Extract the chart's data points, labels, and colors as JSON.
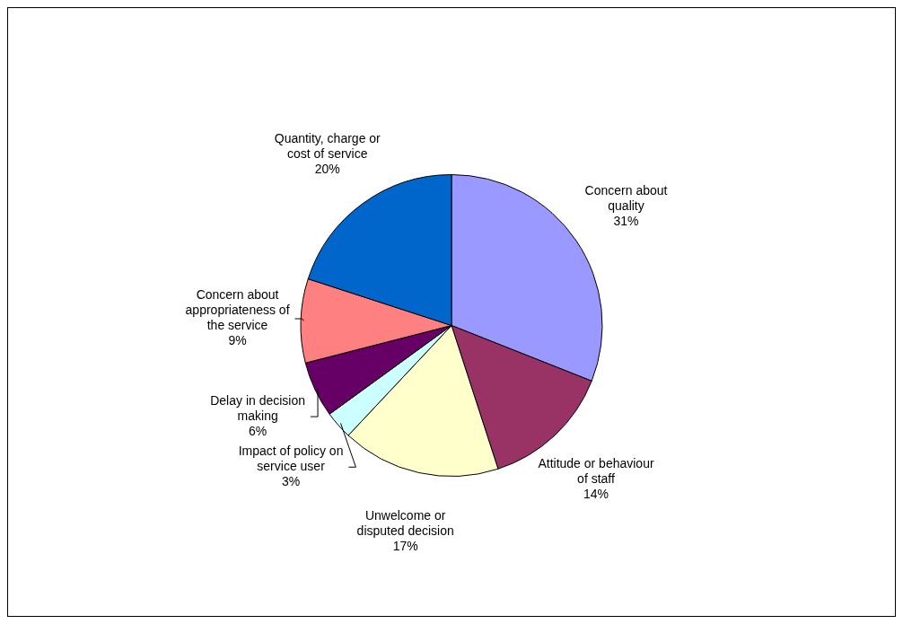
{
  "chart_data": {
    "type": "pie",
    "categories": [
      "Concern about quality",
      "Attitude or behaviour of staff",
      "Unwelcome or disputed decision",
      "Impact of policy on service user",
      "Delay in decision making",
      "Concern about appropriateness of the service",
      "Quantity, charge or cost of service"
    ],
    "values": [
      31,
      14,
      17,
      3,
      6,
      9,
      20
    ],
    "value_labels": [
      "31%",
      "14%",
      "17%",
      "3%",
      "6%",
      "9%",
      "20%"
    ],
    "colors": [
      "#9999ff",
      "#993366",
      "#ffffcc",
      "#ccffff",
      "#660066",
      "#ff8080",
      "#0066cc"
    ],
    "legend": false
  }
}
